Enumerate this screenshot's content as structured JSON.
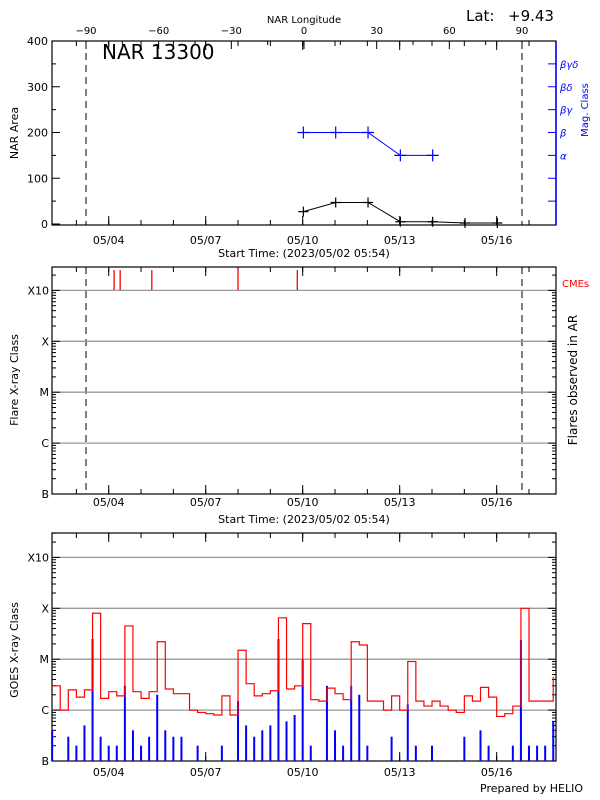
{
  "header": {
    "lat_label": "Lat:",
    "lat_value": "+9.43",
    "region_label": "NAR 13300",
    "footer": "Prepared by HELIO"
  },
  "colors": {
    "area": "#000000",
    "mag_class": "#0000ff",
    "cme": "#ff0000",
    "goes_long": "#ff0000",
    "goes_short": "#0000ff",
    "grid": "#999999"
  },
  "chart_data": [
    {
      "type": "line",
      "title": "NAR 13300",
      "xlabel": "Start Time: (2023/05/02 05:54)",
      "x_tick_labels": [
        "05/04",
        "05/07",
        "05/10",
        "05/13",
        "05/16"
      ],
      "top_axis_label": "NAR Longitude",
      "top_tick_labels": [
        "-90",
        "-60",
        "-30",
        "0",
        "30",
        "60",
        "90"
      ],
      "ylabel": "NAR Area",
      "ylim": [
        0,
        400
      ],
      "y_ticks": [
        0,
        100,
        200,
        300,
        400
      ],
      "y2label": "Mag. Class",
      "y2_tick_labels": [
        {
          "at": 150,
          "label": "α"
        },
        {
          "at": 200,
          "label": "β"
        },
        {
          "at": 250,
          "label": "βγ"
        },
        {
          "at": 300,
          "label": "βδ"
        },
        {
          "at": 350,
          "label": "βγδ"
        }
      ],
      "limb_lines_longitude": [
        -90,
        90
      ],
      "area_series": {
        "time": [
          "05/10 00:30",
          "05/11 00:30",
          "05/12 00:30",
          "05/13 00:30",
          "05/14 00:30",
          "05/15 00:30",
          "05/16 00:30"
        ],
        "values": [
          27,
          47,
          47,
          5,
          5,
          0,
          0
        ]
      },
      "mag_class_series": {
        "time": [
          "05/10 00:30",
          "05/11 00:30",
          "05/12 00:30",
          "05/13 00:30",
          "05/14 00:30"
        ],
        "values": [
          "β",
          "β",
          "β",
          "α",
          "α"
        ]
      }
    },
    {
      "type": "scatter",
      "xlabel": "Start Time: (2023/05/02 05:54)",
      "x_tick_labels": [
        "05/04",
        "05/07",
        "05/10",
        "05/13",
        "05/16"
      ],
      "ylabel": "Flare X-ray Class",
      "y_scale": "log",
      "y_tick_labels": [
        "B",
        "C",
        "M",
        "X",
        "X10"
      ],
      "y2label": "Flares observed in AR",
      "cme_label": "CMEs",
      "cme_times": [
        "05/04 04:00",
        "05/04 08:30",
        "05/05 08:00",
        "05/08 00:00",
        "05/09 20:00"
      ],
      "flares": [],
      "grid": true
    },
    {
      "type": "line",
      "xlabel": "",
      "x_tick_labels": [
        "05/04",
        "05/07",
        "05/10",
        "05/13",
        "05/16"
      ],
      "ylabel": "GOES X-ray Class",
      "y_scale": "log",
      "y_tick_labels": [
        "B",
        "C",
        "M",
        "X",
        "X10"
      ],
      "grid": true,
      "time": [
        "05/02 06:00",
        "05/02 12:00",
        "05/02 18:00",
        "05/03 00:00",
        "05/03 06:00",
        "05/03 12:00",
        "05/03 18:00",
        "05/04 00:00",
        "05/04 06:00",
        "05/04 12:00",
        "05/04 18:00",
        "05/05 00:00",
        "05/05 06:00",
        "05/05 12:00",
        "05/05 18:00",
        "05/06 00:00",
        "05/06 06:00",
        "05/06 12:00",
        "05/06 18:00",
        "05/07 00:00",
        "05/07 06:00",
        "05/07 12:00",
        "05/07 18:00",
        "05/08 00:00",
        "05/08 06:00",
        "05/08 12:00",
        "05/08 18:00",
        "05/09 00:00",
        "05/09 06:00",
        "05/09 12:00",
        "05/09 18:00",
        "05/10 00:00",
        "05/10 06:00",
        "05/10 12:00",
        "05/10 18:00",
        "05/11 00:00",
        "05/11 06:00",
        "05/11 12:00",
        "05/11 18:00",
        "05/12 00:00",
        "05/12 06:00",
        "05/12 12:00",
        "05/12 18:00",
        "05/13 00:00",
        "05/13 06:00",
        "05/13 12:00",
        "05/13 18:00",
        "05/14 00:00",
        "05/14 06:00",
        "05/14 12:00",
        "05/14 18:00",
        "05/15 00:00",
        "05/15 06:00",
        "05/15 12:00",
        "05/15 18:00",
        "05/16 00:00",
        "05/16 06:00",
        "05/16 12:00",
        "05/16 18:00",
        "05/17 00:00",
        "05/17 06:00",
        "05/17 12:00",
        "05/17 18:00"
      ],
      "series": [
        {
          "values": [
            3e-06,
            1e-06,
            2.5e-06,
            1.8e-06,
            2.5e-06,
            8e-05,
            1.7e-06,
            2.3e-06,
            1.9e-06,
            4.5e-05,
            2.3e-06,
            1.7e-06,
            2.3e-06,
            2.2e-05,
            2.6e-06,
            2.1e-06,
            2.1e-06,
            1e-06,
            9e-07,
            8.5e-07,
            8e-07,
            1.9e-06,
            8e-07,
            1.5e-05,
            3.3e-06,
            1.9e-06,
            2.1e-06,
            2.4e-06,
            6.5e-05,
            2.6e-06,
            3e-06,
            5e-05,
            1.6e-06,
            1.5e-06,
            2.7e-06,
            2.1e-06,
            1.6e-06,
            2.2e-05,
            1.9e-05,
            1.5e-06,
            1.5e-06,
            1e-06,
            1.9e-06,
            1e-06,
            9e-06,
            1.5e-06,
            1.2e-06,
            1.5e-06,
            1.2e-06,
            1e-06,
            9e-07,
            1.9e-06,
            1.5e-06,
            2.8e-06,
            1.8e-06,
            7.5e-07,
            8.5e-07,
            1.2e-06,
            0.0001,
            1.5e-06,
            1.5e-06,
            1.5e-06,
            4.5e-06
          ]
        },
        {
          "values": [
            4e-07,
            1e-07,
            3e-07,
            2e-07,
            5e-07,
            2.5e-05,
            3e-07,
            2e-07,
            2e-07,
            3e-06,
            4e-07,
            2e-07,
            3e-07,
            2e-06,
            4e-07,
            3e-07,
            3e-07,
            1e-07,
            2e-07,
            1e-07,
            1e-07,
            2e-07,
            1e-07,
            1.5e-06,
            5e-07,
            3e-07,
            4e-07,
            5e-07,
            2.5e-05,
            6e-07,
            8e-07,
            1e-05,
            2e-07,
            1e-07,
            3e-06,
            4e-07,
            2e-07,
            3e-06,
            2e-06,
            2e-07,
            1e-07,
            1e-07,
            3e-07,
            1e-07,
            1.3e-06,
            2e-07,
            1e-07,
            2e-07,
            1e-07,
            1e-07,
            1e-07,
            3e-07,
            1e-07,
            4e-07,
            2e-07,
            1e-07,
            1e-07,
            2e-07,
            2.4e-05,
            2e-07,
            2e-07,
            2e-07,
            6e-07
          ]
        }
      ]
    }
  ]
}
